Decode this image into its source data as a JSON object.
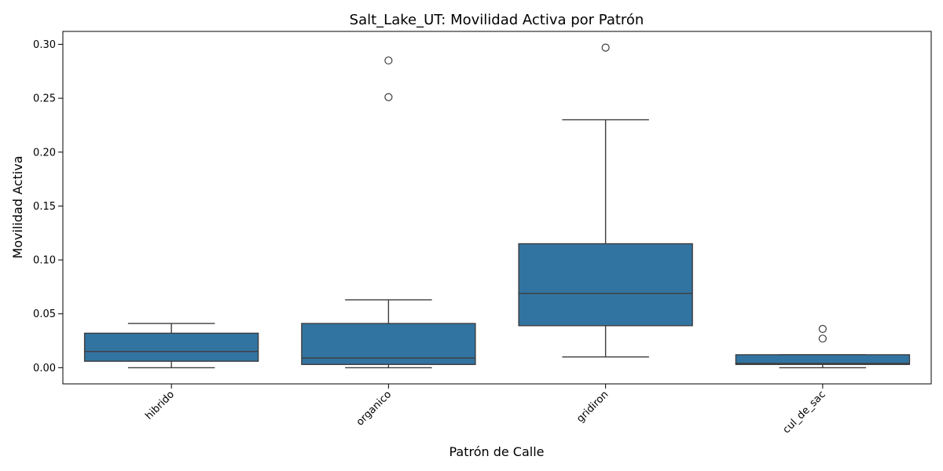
{
  "chart_data": {
    "type": "box",
    "title": "Salt_Lake_UT: Movilidad Activa por Patrón",
    "xlabel": "Patrón de Calle",
    "ylabel": "Movilidad Activa",
    "ylim": [
      -0.015,
      0.312
    ],
    "yticks": [
      0.0,
      0.05,
      0.1,
      0.15,
      0.2,
      0.25,
      0.3
    ],
    "ytick_labels": [
      "0.00",
      "0.05",
      "0.10",
      "0.15",
      "0.20",
      "0.25",
      "0.30"
    ],
    "categories": [
      "hibrido",
      "organico",
      "gridiron",
      "cul_de_sac"
    ],
    "boxes": [
      {
        "category": "hibrido",
        "whisker_low": 0.0,
        "q1": 0.006,
        "median": 0.015,
        "q3": 0.032,
        "whisker_high": 0.041,
        "outliers": []
      },
      {
        "category": "organico",
        "whisker_low": 0.0,
        "q1": 0.003,
        "median": 0.009,
        "q3": 0.041,
        "whisker_high": 0.063,
        "outliers": [
          0.251,
          0.285
        ]
      },
      {
        "category": "gridiron",
        "whisker_low": 0.01,
        "q1": 0.039,
        "median": 0.069,
        "q3": 0.115,
        "whisker_high": 0.23,
        "outliers": [
          0.297
        ]
      },
      {
        "category": "cul_de_sac",
        "whisker_low": 0.0,
        "q1": 0.003,
        "median": 0.004,
        "q3": 0.012,
        "whisker_high": 0.012,
        "outliers": [
          0.027,
          0.036
        ]
      }
    ],
    "box_color": "#3274a1",
    "line_color": "#3d3d3d",
    "grid": false,
    "legend": "none"
  }
}
